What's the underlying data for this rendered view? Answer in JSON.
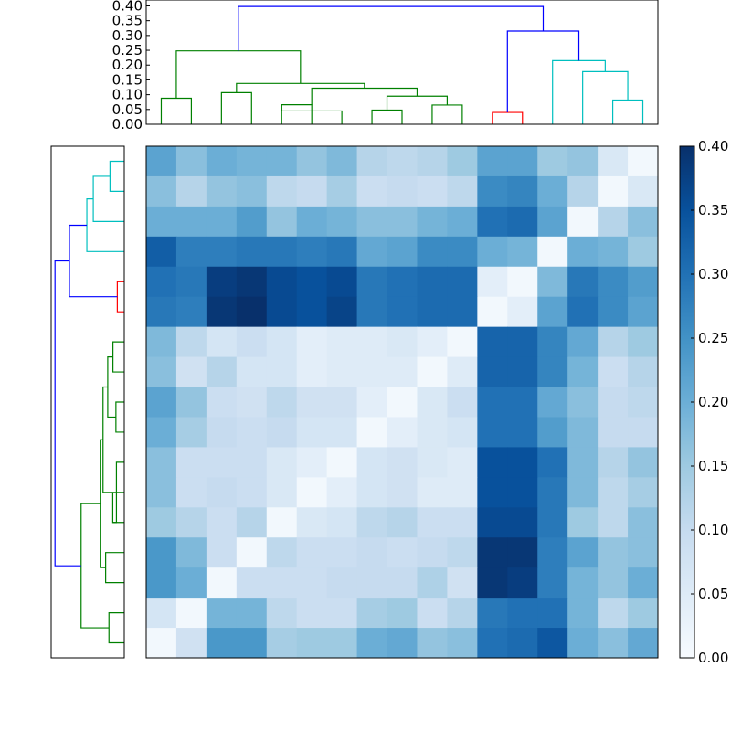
{
  "chart_data": [
    {
      "type": "dendrogram",
      "orientation": "top",
      "ylim": [
        0,
        0.42
      ],
      "ytick_labels": [
        "0.00",
        "0.05",
        "0.10",
        "0.15",
        "0.20",
        "0.25",
        "0.30",
        "0.35",
        "0.40"
      ],
      "leaf_count": 17,
      "colors": {
        "green": "#008000",
        "red": "#ff0000",
        "cyan": "#00bfbf",
        "blue": "#0000ff"
      },
      "links": [
        {
          "left_x": 0.5,
          "right_x": 1.5,
          "left_h": 0.0,
          "right_h": 0.0,
          "h": 0.088,
          "color": "green"
        },
        {
          "left_x": 2.5,
          "right_x": 3.5,
          "left_h": 0.0,
          "right_h": 0.0,
          "h": 0.107,
          "color": "green"
        },
        {
          "left_x": 4.5,
          "right_x": 5.5,
          "left_h": 0.0,
          "right_h": 0.0,
          "h": 0.066,
          "color": "green"
        },
        {
          "left_x": 4.5,
          "right_x": 6.5,
          "left_h": 0.066,
          "right_h": 0.0,
          "h": 0.045,
          "color": "green"
        },
        {
          "left_x": 7.5,
          "right_x": 8.5,
          "left_h": 0.0,
          "right_h": 0.0,
          "h": 0.048,
          "color": "green"
        },
        {
          "left_x": 9.5,
          "right_x": 10.5,
          "left_h": 0.0,
          "right_h": 0.0,
          "h": 0.065,
          "color": "green"
        },
        {
          "left_x": 8.0,
          "right_x": 10.0,
          "left_h": 0.048,
          "right_h": 0.065,
          "h": 0.095,
          "color": "green"
        },
        {
          "left_x": 5.5,
          "right_x": 9.0,
          "left_h": 0.066,
          "right_h": 0.095,
          "h": 0.122,
          "color": "green"
        },
        {
          "left_x": 3.0,
          "right_x": 7.25,
          "left_h": 0.107,
          "right_h": 0.122,
          "h": 0.138,
          "color": "green"
        },
        {
          "left_x": 1.0,
          "right_x": 5.125,
          "left_h": 0.088,
          "right_h": 0.138,
          "h": 0.248,
          "color": "green"
        },
        {
          "left_x": 11.5,
          "right_x": 12.5,
          "left_h": 0.0,
          "right_h": 0.0,
          "h": 0.04,
          "color": "red"
        },
        {
          "left_x": 15.5,
          "right_x": 16.5,
          "left_h": 0.0,
          "right_h": 0.0,
          "h": 0.082,
          "color": "cyan"
        },
        {
          "left_x": 14.5,
          "right_x": 16.0,
          "left_h": 0.0,
          "right_h": 0.082,
          "h": 0.178,
          "color": "cyan"
        },
        {
          "left_x": 13.5,
          "right_x": 15.25,
          "left_h": 0.0,
          "right_h": 0.178,
          "h": 0.215,
          "color": "cyan"
        },
        {
          "left_x": 12.0,
          "right_x": 14.375,
          "left_h": 0.04,
          "right_h": 0.215,
          "h": 0.315,
          "color": "blue"
        },
        {
          "left_x": 3.06,
          "right_x": 13.19,
          "left_h": 0.248,
          "right_h": 0.315,
          "h": 0.398,
          "color": "blue"
        }
      ]
    },
    {
      "type": "heatmap",
      "rows": 17,
      "cols": 17,
      "vmin": 0.0,
      "vmax": 0.4,
      "colormap": "Blues",
      "values": [
        [
          0.22,
          0.17,
          0.2,
          0.19,
          0.19,
          0.16,
          0.18,
          0.12,
          0.11,
          0.12,
          0.15,
          0.22,
          0.22,
          0.15,
          0.16,
          0.06,
          0.01
        ],
        [
          0.17,
          0.12,
          0.16,
          0.17,
          0.11,
          0.1,
          0.14,
          0.09,
          0.1,
          0.09,
          0.11,
          0.26,
          0.27,
          0.2,
          0.12,
          0.01,
          0.06
        ],
        [
          0.2,
          0.2,
          0.2,
          0.23,
          0.16,
          0.2,
          0.19,
          0.17,
          0.17,
          0.19,
          0.2,
          0.3,
          0.31,
          0.22,
          0.01,
          0.12,
          0.17
        ],
        [
          0.33,
          0.28,
          0.28,
          0.29,
          0.29,
          0.28,
          0.29,
          0.21,
          0.22,
          0.26,
          0.26,
          0.2,
          0.19,
          0.01,
          0.2,
          0.19,
          0.15
        ],
        [
          0.3,
          0.29,
          0.38,
          0.39,
          0.36,
          0.35,
          0.36,
          0.29,
          0.3,
          0.31,
          0.31,
          0.04,
          0.01,
          0.18,
          0.29,
          0.26,
          0.23
        ],
        [
          0.29,
          0.28,
          0.39,
          0.4,
          0.36,
          0.35,
          0.37,
          0.29,
          0.3,
          0.31,
          0.31,
          0.01,
          0.04,
          0.22,
          0.3,
          0.26,
          0.22
        ],
        [
          0.18,
          0.11,
          0.07,
          0.09,
          0.07,
          0.04,
          0.05,
          0.05,
          0.06,
          0.04,
          0.01,
          0.32,
          0.32,
          0.27,
          0.21,
          0.12,
          0.15
        ],
        [
          0.17,
          0.08,
          0.12,
          0.07,
          0.07,
          0.04,
          0.05,
          0.05,
          0.05,
          0.01,
          0.05,
          0.32,
          0.32,
          0.27,
          0.19,
          0.09,
          0.12
        ],
        [
          0.22,
          0.16,
          0.09,
          0.08,
          0.11,
          0.08,
          0.08,
          0.04,
          0.01,
          0.06,
          0.09,
          0.3,
          0.3,
          0.21,
          0.17,
          0.1,
          0.11
        ],
        [
          0.2,
          0.14,
          0.1,
          0.09,
          0.1,
          0.07,
          0.07,
          0.01,
          0.04,
          0.06,
          0.07,
          0.3,
          0.3,
          0.23,
          0.18,
          0.1,
          0.1
        ],
        [
          0.17,
          0.09,
          0.09,
          0.09,
          0.06,
          0.04,
          0.01,
          0.07,
          0.08,
          0.06,
          0.05,
          0.35,
          0.35,
          0.3,
          0.18,
          0.12,
          0.16
        ],
        [
          0.17,
          0.09,
          0.1,
          0.09,
          0.06,
          0.01,
          0.04,
          0.07,
          0.08,
          0.05,
          0.05,
          0.35,
          0.35,
          0.29,
          0.18,
          0.11,
          0.14
        ],
        [
          0.15,
          0.12,
          0.09,
          0.12,
          0.01,
          0.06,
          0.07,
          0.11,
          0.12,
          0.09,
          0.09,
          0.36,
          0.36,
          0.29,
          0.15,
          0.11,
          0.17
        ],
        [
          0.24,
          0.18,
          0.09,
          0.01,
          0.11,
          0.09,
          0.09,
          0.1,
          0.09,
          0.1,
          0.11,
          0.39,
          0.39,
          0.28,
          0.22,
          0.16,
          0.17
        ],
        [
          0.24,
          0.2,
          0.01,
          0.09,
          0.09,
          0.09,
          0.1,
          0.1,
          0.1,
          0.13,
          0.08,
          0.39,
          0.38,
          0.28,
          0.19,
          0.16,
          0.2
        ],
        [
          0.07,
          0.01,
          0.19,
          0.19,
          0.11,
          0.09,
          0.09,
          0.14,
          0.15,
          0.09,
          0.12,
          0.29,
          0.3,
          0.3,
          0.19,
          0.11,
          0.15
        ],
        [
          0.01,
          0.08,
          0.24,
          0.24,
          0.14,
          0.15,
          0.15,
          0.2,
          0.21,
          0.16,
          0.17,
          0.3,
          0.31,
          0.34,
          0.2,
          0.17,
          0.21
        ]
      ]
    },
    {
      "type": "colorbar",
      "ylim": [
        0,
        0.4
      ],
      "ytick_labels": [
        "0.00",
        "0.05",
        "0.10",
        "0.15",
        "0.20",
        "0.25",
        "0.30",
        "0.35",
        "0.40"
      ]
    }
  ]
}
